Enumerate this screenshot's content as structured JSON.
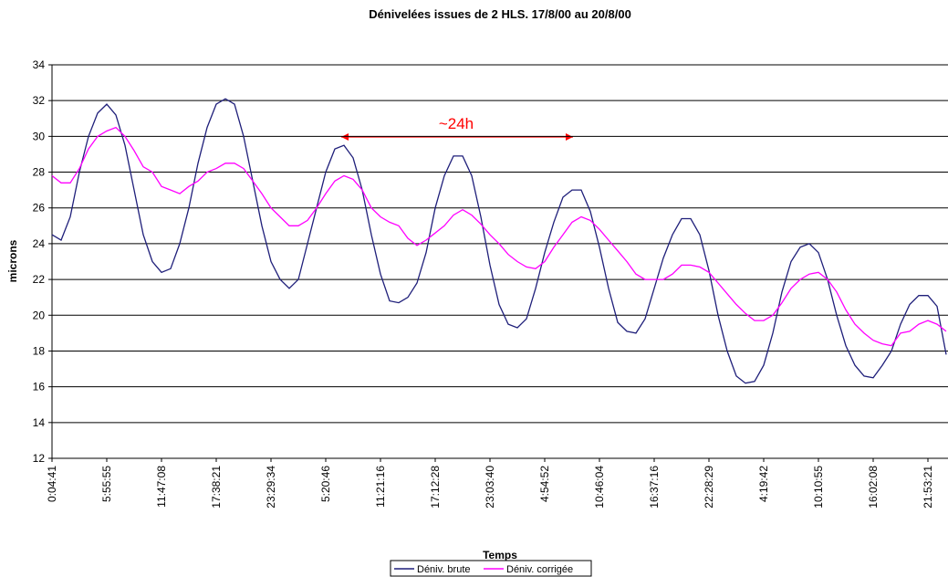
{
  "chart_data": {
    "type": "line",
    "title": "Dénivelées issues de 2 HLS. 17/8/00 au 20/8/00",
    "x_label": "Temps",
    "y_label": "microns",
    "annotation": "~24h",
    "categories": [
      "0:04:41",
      null,
      null,
      null,
      null,
      null,
      "5:55:55",
      null,
      null,
      null,
      null,
      null,
      "11:47:08",
      null,
      null,
      null,
      null,
      null,
      "17:38:21",
      null,
      null,
      null,
      null,
      null,
      "23:29:34",
      null,
      null,
      null,
      null,
      null,
      "5:20:46",
      null,
      null,
      null,
      null,
      null,
      "11:21:16",
      null,
      null,
      null,
      null,
      null,
      "17:12:28",
      null,
      null,
      null,
      null,
      null,
      "23:03:40",
      null,
      null,
      null,
      null,
      null,
      "4:54:52",
      null,
      null,
      null,
      null,
      null,
      "10:46:04",
      null,
      null,
      null,
      null,
      null,
      "16:37:16",
      null,
      null,
      null,
      null,
      null,
      "22:28:29",
      null,
      null,
      null,
      null,
      null,
      "4:19:42",
      null,
      null,
      null,
      null,
      null,
      "10:10:55",
      null,
      null,
      null,
      null,
      null,
      "16:02:08",
      null,
      null,
      null,
      null,
      null,
      "21:53:21",
      null,
      null
    ],
    "series": [
      {
        "name": "Déniv. brute",
        "color": "#1f1f7a",
        "values": [
          24.5,
          24.2,
          25.5,
          28,
          30,
          31.3,
          31.8,
          31.2,
          29.5,
          27,
          24.5,
          23,
          22.4,
          22.6,
          24,
          26,
          28.5,
          30.5,
          31.8,
          32.1,
          31.8,
          30,
          27.5,
          25,
          23,
          22,
          21.5,
          22,
          24,
          26,
          28,
          29.3,
          29.5,
          28.8,
          27,
          24.5,
          22.3,
          20.8,
          20.7,
          21,
          21.8,
          23.5,
          26,
          27.8,
          28.9,
          28.9,
          27.8,
          25.5,
          22.8,
          20.6,
          19.5,
          19.3,
          19.8,
          21.5,
          23.5,
          25.2,
          26.6,
          27,
          27,
          25.8,
          23.8,
          21.5,
          19.6,
          19.1,
          19,
          19.8,
          21.5,
          23.2,
          24.5,
          25.4,
          25.4,
          24.5,
          22.5,
          20,
          18,
          16.6,
          16.2,
          16.3,
          17.2,
          19,
          21.3,
          23,
          23.8,
          24,
          23.5,
          22,
          20,
          18.3,
          17.2,
          16.6,
          16.5,
          17.2,
          18,
          19.5,
          20.6,
          21.1,
          21.1,
          20.5,
          17.8
        ]
      },
      {
        "name": "Déniv. corrigée",
        "color": "#ff00ff",
        "values": [
          27.8,
          27.4,
          27.4,
          28.2,
          29.3,
          30,
          30.3,
          30.5,
          30,
          29.2,
          28.3,
          28,
          27.2,
          27,
          26.8,
          27.2,
          27.5,
          28,
          28.2,
          28.5,
          28.5,
          28.2,
          27.5,
          26.8,
          26,
          25.5,
          25,
          25,
          25.3,
          26,
          26.8,
          27.5,
          27.8,
          27.6,
          27,
          26,
          25.5,
          25.2,
          25,
          24.3,
          23.9,
          24.2,
          24.6,
          25,
          25.6,
          25.9,
          25.6,
          25.1,
          24.5,
          24,
          23.4,
          23,
          22.7,
          22.6,
          23,
          23.8,
          24.5,
          25.2,
          25.5,
          25.3,
          24.8,
          24.2,
          23.6,
          23,
          22.3,
          22,
          22,
          22,
          22.3,
          22.8,
          22.8,
          22.7,
          22.4,
          21.8,
          21.2,
          20.6,
          20.1,
          19.7,
          19.7,
          20,
          20.7,
          21.5,
          22,
          22.3,
          22.4,
          22,
          21.3,
          20.3,
          19.5,
          19,
          18.6,
          18.4,
          18.3,
          19,
          19.1,
          19.5,
          19.7,
          19.5,
          19.1
        ]
      }
    ],
    "ylim": [
      12,
      34
    ],
    "yticks": [
      12,
      14,
      16,
      18,
      20,
      22,
      24,
      26,
      28,
      30,
      32,
      34
    ],
    "grid": true,
    "legend": "bottom"
  }
}
